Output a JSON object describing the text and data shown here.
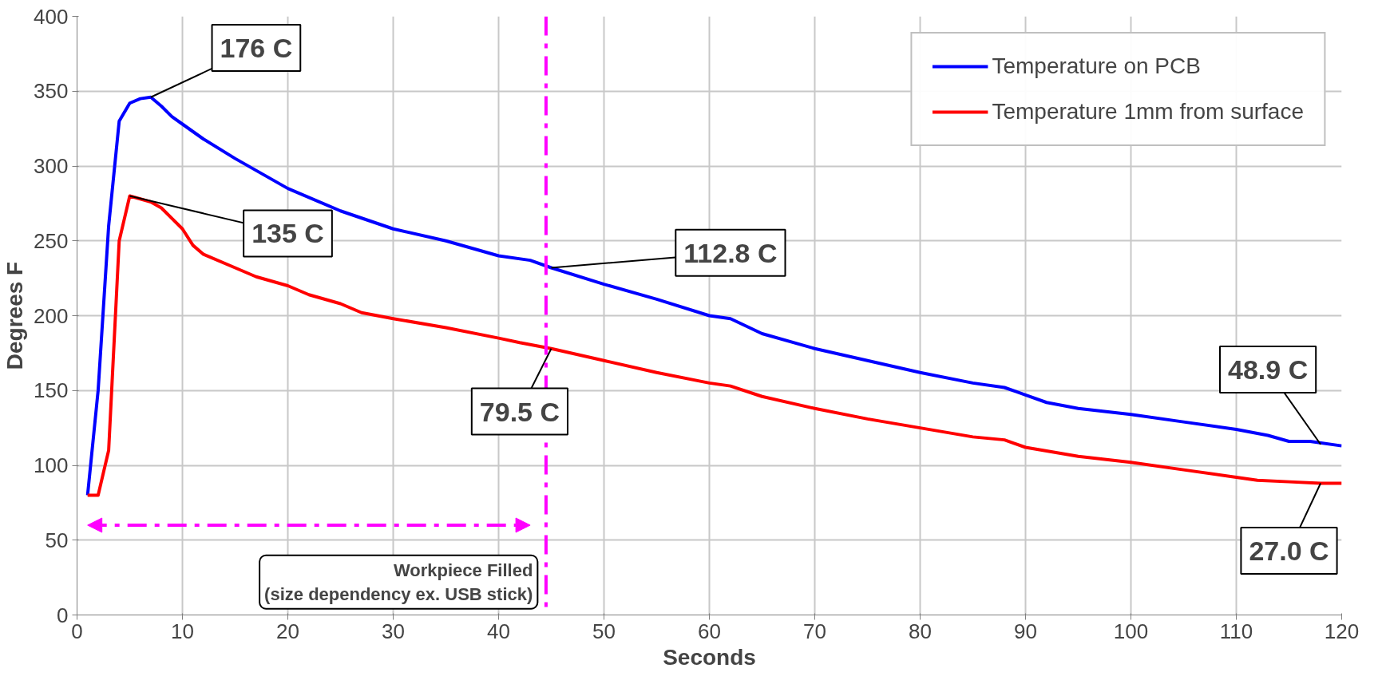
{
  "chart_data": {
    "type": "line",
    "xlabel": "Seconds",
    "ylabel": "Degrees F",
    "xlim": [
      0,
      120
    ],
    "ylim": [
      0,
      400
    ],
    "xticks": [
      0,
      10,
      20,
      30,
      40,
      50,
      60,
      70,
      80,
      90,
      100,
      110,
      120
    ],
    "yticks": [
      0,
      50,
      100,
      150,
      200,
      250,
      300,
      350,
      400
    ],
    "grid": true,
    "legend": "top right",
    "marker": "none",
    "line_style": "solid",
    "series": [
      {
        "name": "Temperature on PCB",
        "color": "#0000ff",
        "x": [
          1,
          2,
          3,
          4,
          5,
          6,
          7,
          8,
          9,
          10,
          12,
          15,
          20,
          25,
          30,
          35,
          40,
          43,
          45,
          50,
          55,
          60,
          62,
          65,
          70,
          75,
          80,
          85,
          88,
          90,
          92,
          95,
          100,
          105,
          110,
          113,
          115,
          117,
          120
        ],
        "values": [
          80,
          150,
          260,
          330,
          342,
          345,
          346,
          340,
          333,
          328,
          318,
          305,
          285,
          270,
          258,
          250,
          240,
          237,
          232,
          221,
          211,
          200,
          198,
          188,
          178,
          170,
          162,
          155,
          152,
          147,
          142,
          138,
          134,
          129,
          124,
          120,
          116,
          116,
          113
        ]
      },
      {
        "name": "Temperature 1mm from surface",
        "color": "#ff0000",
        "x": [
          1,
          2,
          3,
          4,
          5,
          6,
          7,
          8,
          9,
          10,
          11,
          12,
          15,
          17,
          20,
          22,
          25,
          27,
          30,
          35,
          40,
          42,
          45,
          50,
          55,
          60,
          62,
          65,
          70,
          75,
          80,
          85,
          88,
          90,
          95,
          100,
          105,
          110,
          112,
          115,
          118,
          120
        ],
        "values": [
          80,
          80,
          110,
          250,
          280,
          278,
          276,
          272,
          265,
          258,
          247,
          241,
          232,
          226,
          220,
          214,
          208,
          202,
          198,
          192,
          185,
          182,
          178,
          170,
          162,
          155,
          153,
          146,
          138,
          131,
          125,
          119,
          117,
          112,
          106,
          102,
          97,
          92,
          90,
          89,
          88,
          88
        ]
      }
    ],
    "ref_lines": [
      {
        "axis": "x",
        "value": 44.5,
        "label": "Workpiece Filled\n(size dependency ex. USB stick)",
        "color": "#ff00ff",
        "line_style": "dashdot"
      }
    ],
    "annotations": [
      {
        "text": "176 C",
        "x": 7,
        "y": 346
      },
      {
        "text": "135 C",
        "x": 5,
        "y": 280
      },
      {
        "text": "112.8 C",
        "x": 45,
        "y": 232
      },
      {
        "text": "79.5 C",
        "x": 45,
        "y": 178
      },
      {
        "text": "48.9 C",
        "x": 118,
        "y": 114
      },
      {
        "text": "27.0 C",
        "x": 118,
        "y": 88
      }
    ]
  }
}
